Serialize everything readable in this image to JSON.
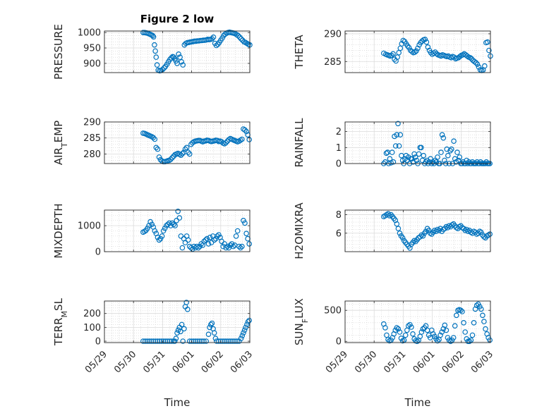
{
  "figure": {
    "marker_color": "#0072BD",
    "axis_color": "#262626",
    "grid": true,
    "minor_grid": true
  },
  "chart_data": [
    {
      "type": "scatter",
      "title": "Figure 2 low",
      "ylabel": "PRESSURE",
      "xlabel": "",
      "ylim": [
        870,
        1005
      ],
      "yticks": [
        900,
        950,
        1000
      ],
      "xlim": [
        0,
        5
      ],
      "xticks": [],
      "x": [
        1.33,
        1.38,
        1.43,
        1.48,
        1.53,
        1.58,
        1.62,
        1.66,
        1.69,
        1.72,
        1.75,
        1.78,
        1.81,
        1.85,
        1.9,
        1.95,
        2.0,
        2.05,
        2.1,
        2.15,
        2.2,
        2.25,
        2.3,
        2.35,
        2.38,
        2.42,
        2.46,
        2.5,
        2.55,
        2.6,
        2.65,
        2.7,
        2.75,
        2.8,
        2.85,
        2.9,
        2.95,
        3.0,
        3.05,
        3.1,
        3.15,
        3.2,
        3.25,
        3.3,
        3.35,
        3.4,
        3.45,
        3.5,
        3.55,
        3.6,
        3.65,
        3.7,
        3.75,
        3.8,
        3.85,
        3.9,
        3.95,
        4.0,
        4.05,
        4.1,
        4.15,
        4.2,
        4.25,
        4.3,
        4.35,
        4.4,
        4.45,
        4.5,
        4.55,
        4.6,
        4.65,
        4.7,
        4.75,
        4.8,
        4.85,
        4.9,
        4.95,
        5.0
      ],
      "y": [
        1000,
        1000,
        999,
        998,
        996,
        994,
        992,
        990,
        986,
        960,
        940,
        920,
        895,
        878,
        876,
        877,
        880,
        885,
        890,
        897,
        905,
        912,
        918,
        922,
        920,
        915,
        908,
        900,
        930,
        920,
        905,
        895,
        960,
        965,
        967,
        968,
        969,
        970,
        971,
        972,
        972,
        973,
        973,
        974,
        974,
        975,
        975,
        976,
        978,
        977,
        978,
        980,
        985,
        965,
        958,
        962,
        968,
        975,
        982,
        990,
        995,
        998,
        1000,
        1001,
        1000,
        999,
        998,
        996,
        993,
        990,
        985,
        980,
        975,
        970,
        968,
        965,
        962,
        960
      ]
    },
    {
      "type": "scatter",
      "title": "",
      "ylabel": "THETA",
      "xlabel": "",
      "ylim": [
        283,
        290.5
      ],
      "yticks": [
        285,
        290
      ],
      "xlim": [
        0,
        5
      ],
      "xticks": [],
      "x": [
        1.33,
        1.4,
        1.45,
        1.5,
        1.55,
        1.6,
        1.65,
        1.7,
        1.75,
        1.8,
        1.85,
        1.9,
        1.95,
        2.0,
        2.05,
        2.1,
        2.15,
        2.2,
        2.25,
        2.3,
        2.35,
        2.4,
        2.45,
        2.5,
        2.55,
        2.6,
        2.65,
        2.7,
        2.75,
        2.8,
        2.85,
        2.9,
        2.95,
        3.0,
        3.05,
        3.1,
        3.15,
        3.2,
        3.25,
        3.3,
        3.35,
        3.4,
        3.45,
        3.5,
        3.55,
        3.6,
        3.65,
        3.7,
        3.75,
        3.8,
        3.85,
        3.9,
        3.95,
        4.0,
        4.05,
        4.1,
        4.15,
        4.2,
        4.25,
        4.3,
        4.35,
        4.4,
        4.45,
        4.5,
        4.55,
        4.6,
        4.65,
        4.7,
        4.75,
        4.8,
        4.85,
        4.9,
        4.95,
        5.0
      ],
      "y": [
        286.5,
        286.3,
        286.2,
        286.1,
        286.0,
        286.1,
        286.4,
        285.4,
        285.1,
        285.8,
        286.6,
        287.4,
        288.2,
        288.8,
        288.6,
        288.2,
        287.8,
        287.5,
        287.0,
        286.8,
        286.6,
        286.7,
        286.9,
        287.4,
        288.0,
        288.4,
        288.7,
        288.9,
        289.0,
        288.5,
        287.6,
        287.0,
        286.6,
        286.3,
        286.5,
        286.7,
        286.4,
        286.2,
        286.1,
        286.0,
        286.2,
        286.1,
        286.0,
        285.9,
        286.0,
        285.8,
        285.7,
        285.9,
        285.8,
        285.5,
        285.6,
        285.7,
        285.9,
        286.1,
        286.2,
        286.4,
        286.2,
        286.0,
        285.8,
        285.7,
        285.5,
        285.2,
        285.0,
        284.8,
        284.5,
        284.0,
        283.5,
        283.4,
        283.5,
        284.2,
        288.4,
        288.5,
        287.0,
        286.0
      ]
    },
    {
      "type": "scatter",
      "title": "",
      "ylabel": "AIR_TEMP",
      "xlabel": "",
      "ylim": [
        277,
        290
      ],
      "yticks": [
        280,
        285,
        290
      ],
      "xlim": [
        0,
        5
      ],
      "xticks": [],
      "x": [
        1.33,
        1.38,
        1.43,
        1.48,
        1.53,
        1.58,
        1.63,
        1.68,
        1.73,
        1.78,
        1.83,
        1.88,
        1.93,
        1.98,
        2.03,
        2.08,
        2.13,
        2.18,
        2.23,
        2.28,
        2.33,
        2.38,
        2.43,
        2.48,
        2.53,
        2.58,
        2.63,
        2.68,
        2.73,
        2.78,
        2.83,
        2.88,
        2.93,
        2.98,
        3.03,
        3.08,
        3.13,
        3.18,
        3.23,
        3.28,
        3.33,
        3.38,
        3.43,
        3.48,
        3.53,
        3.58,
        3.63,
        3.68,
        3.73,
        3.78,
        3.83,
        3.88,
        3.93,
        3.98,
        4.03,
        4.08,
        4.13,
        4.18,
        4.23,
        4.28,
        4.33,
        4.38,
        4.43,
        4.48,
        4.53,
        4.58,
        4.63,
        4.68,
        4.73,
        4.78,
        4.83,
        4.88,
        4.93,
        4.98
      ],
      "y": [
        286.5,
        286.4,
        286.2,
        286.0,
        285.8,
        285.6,
        285.4,
        285.1,
        284.6,
        282.0,
        281.5,
        279.0,
        278.2,
        277.8,
        277.6,
        277.6,
        277.7,
        277.9,
        278.0,
        278.3,
        278.8,
        279.3,
        279.8,
        280.0,
        280.2,
        279.9,
        279.6,
        280.1,
        280.5,
        281.5,
        282.0,
        280.5,
        280.0,
        283.0,
        283.5,
        283.8,
        284.0,
        284.1,
        284.2,
        284.2,
        284.0,
        283.8,
        284.0,
        284.1,
        284.3,
        284.2,
        284.0,
        283.9,
        284.0,
        284.1,
        284.3,
        284.2,
        283.9,
        284.0,
        283.8,
        283.4,
        283.2,
        283.5,
        284.0,
        284.5,
        284.8,
        284.6,
        284.4,
        284.2,
        284.0,
        283.8,
        284.0,
        284.3,
        284.6,
        287.8,
        287.5,
        287.0,
        286.0,
        284.5
      ]
    },
    {
      "type": "scatter",
      "title": "",
      "ylabel": "RAINFALL",
      "xlabel": "",
      "ylim": [
        0,
        2.6
      ],
      "yticks": [
        0,
        1,
        2
      ],
      "xlim": [
        0,
        5
      ],
      "xticks": [],
      "x": [
        1.33,
        1.38,
        1.42,
        1.46,
        1.5,
        1.54,
        1.58,
        1.62,
        1.66,
        1.7,
        1.74,
        1.78,
        1.82,
        1.86,
        1.9,
        1.94,
        1.98,
        2.02,
        2.06,
        2.1,
        2.14,
        2.18,
        2.22,
        2.26,
        2.3,
        2.34,
        2.38,
        2.42,
        2.46,
        2.5,
        2.54,
        2.58,
        2.62,
        2.66,
        2.7,
        2.74,
        2.78,
        2.82,
        2.86,
        2.9,
        2.94,
        2.98,
        3.02,
        3.06,
        3.1,
        3.14,
        3.18,
        3.22,
        3.26,
        3.3,
        3.34,
        3.38,
        3.42,
        3.46,
        3.5,
        3.54,
        3.58,
        3.62,
        3.66,
        3.7,
        3.74,
        3.78,
        3.82,
        3.86,
        3.9,
        3.94,
        3.98,
        4.02,
        4.06,
        4.1,
        4.14,
        4.18,
        4.22,
        4.26,
        4.3,
        4.34,
        4.38,
        4.42,
        4.46,
        4.5,
        4.54,
        4.58,
        4.62,
        4.66,
        4.7,
        4.74,
        4.78,
        4.82,
        4.86,
        4.9,
        4.94,
        4.98
      ],
      "y": [
        0,
        0.1,
        0.65,
        0.7,
        0.0,
        0.3,
        0.05,
        0.7,
        0.1,
        1.7,
        1.1,
        1.8,
        2.5,
        1.1,
        1.8,
        0.5,
        0.2,
        0.0,
        0.3,
        0.5,
        0.2,
        0.4,
        0.0,
        0.3,
        0.3,
        0.1,
        0.6,
        0.4,
        0.2,
        0.0,
        0.6,
        1.0,
        1.0,
        0.2,
        0.5,
        0.0,
        0.1,
        0.2,
        0.0,
        0.1,
        0.3,
        0.0,
        0.1,
        0.0,
        0.2,
        0.1,
        0.4,
        0.0,
        0.0,
        0.7,
        1.8,
        1.6,
        0.2,
        0.0,
        0.9,
        0.5,
        0.0,
        0.8,
        0.9,
        0.0,
        1.4,
        0.3,
        0.1,
        0.7,
        0.2,
        0.4,
        0.0,
        0.0,
        0.1,
        0.0,
        0.0,
        0.2,
        0.0,
        0.1,
        0.0,
        0.0,
        0.1,
        0.0,
        0.0,
        0.0,
        0.1,
        0.0,
        0.0,
        0.1,
        0.0,
        0.0,
        0.0,
        0.0,
        0.1,
        0.0,
        0.0,
        0.0
      ]
    },
    {
      "type": "scatter",
      "title": "",
      "ylabel": "MIXDEPTH",
      "xlabel": "",
      "ylim": [
        0,
        1600
      ],
      "yticks": [
        0,
        1000
      ],
      "xlim": [
        0,
        5
      ],
      "xticks": [],
      "x": [
        1.33,
        1.38,
        1.43,
        1.48,
        1.53,
        1.58,
        1.63,
        1.68,
        1.73,
        1.78,
        1.83,
        1.88,
        1.93,
        1.98,
        2.03,
        2.08,
        2.13,
        2.18,
        2.23,
        2.28,
        2.33,
        2.38,
        2.43,
        2.48,
        2.53,
        2.58,
        2.63,
        2.68,
        2.73,
        2.78,
        2.83,
        2.88,
        2.93,
        2.98,
        3.03,
        3.08,
        3.13,
        3.18,
        3.23,
        3.28,
        3.33,
        3.38,
        3.43,
        3.48,
        3.53,
        3.58,
        3.63,
        3.68,
        3.73,
        3.78,
        3.83,
        3.88,
        3.93,
        3.98,
        4.03,
        4.08,
        4.13,
        4.18,
        4.23,
        4.28,
        4.33,
        4.38,
        4.43,
        4.48,
        4.53,
        4.58,
        4.63,
        4.68,
        4.73,
        4.78,
        4.83,
        4.88,
        4.93,
        4.98
      ],
      "y": [
        750,
        780,
        820,
        900,
        1000,
        1150,
        1050,
        950,
        800,
        700,
        550,
        450,
        500,
        600,
        800,
        900,
        1000,
        1050,
        1100,
        1000,
        1100,
        1050,
        1000,
        1200,
        1550,
        1300,
        600,
        150,
        500,
        350,
        600,
        450,
        200,
        150,
        100,
        200,
        150,
        200,
        150,
        200,
        300,
        250,
        400,
        450,
        500,
        300,
        550,
        350,
        600,
        450,
        500,
        600,
        650,
        550,
        400,
        200,
        300,
        150,
        200,
        150,
        250,
        300,
        200,
        250,
        600,
        800,
        200,
        150,
        200,
        1200,
        1100,
        700,
        500,
        300
      ]
    },
    {
      "type": "scatter",
      "title": "",
      "ylabel": "H2OMIXRA",
      "xlabel": "",
      "ylim": [
        4,
        8.5
      ],
      "yticks": [
        6,
        8
      ],
      "xlim": [
        0,
        5
      ],
      "xticks": [],
      "x": [
        1.33,
        1.38,
        1.43,
        1.48,
        1.53,
        1.58,
        1.63,
        1.68,
        1.73,
        1.78,
        1.83,
        1.88,
        1.93,
        1.98,
        2.03,
        2.08,
        2.13,
        2.18,
        2.23,
        2.28,
        2.33,
        2.38,
        2.43,
        2.48,
        2.53,
        2.58,
        2.63,
        2.68,
        2.73,
        2.78,
        2.83,
        2.88,
        2.93,
        2.98,
        3.03,
        3.08,
        3.13,
        3.18,
        3.23,
        3.28,
        3.33,
        3.38,
        3.43,
        3.48,
        3.53,
        3.58,
        3.63,
        3.68,
        3.73,
        3.78,
        3.83,
        3.88,
        3.93,
        3.98,
        4.03,
        4.08,
        4.13,
        4.18,
        4.23,
        4.28,
        4.33,
        4.38,
        4.43,
        4.48,
        4.53,
        4.58,
        4.63,
        4.68,
        4.73,
        4.78,
        4.83,
        4.88,
        4.93,
        4.98
      ],
      "y": [
        7.8,
        7.9,
        8.0,
        8.1,
        7.9,
        8.0,
        7.8,
        7.6,
        7.4,
        7.0,
        6.5,
        6.0,
        5.7,
        5.5,
        5.2,
        5.0,
        4.8,
        4.6,
        4.4,
        4.8,
        5.0,
        5.2,
        5.1,
        5.3,
        5.5,
        5.6,
        5.8,
        5.7,
        6.0,
        6.2,
        6.5,
        6.3,
        6.0,
        5.9,
        6.1,
        6.3,
        6.2,
        6.4,
        6.3,
        6.5,
        6.2,
        6.4,
        6.5,
        6.7,
        6.6,
        6.8,
        6.7,
        6.9,
        7.0,
        6.8,
        6.6,
        6.5,
        6.7,
        6.8,
        6.6,
        6.5,
        6.3,
        6.4,
        6.2,
        6.3,
        6.1,
        6.0,
        6.2,
        6.1,
        5.9,
        6.0,
        6.2,
        6.1,
        5.8,
        5.6,
        5.5,
        5.7,
        5.8,
        5.9
      ]
    },
    {
      "type": "scatter",
      "title": "",
      "ylabel": "TERR_MSL",
      "xlabel": "Time",
      "ylim": [
        -10,
        290
      ],
      "yticks": [
        0,
        100,
        200
      ],
      "xlim": [
        0,
        5
      ],
      "xticks": [
        0,
        1,
        2,
        3,
        4,
        5
      ],
      "xticklabels": [
        "05/29",
        "05/30",
        "05/31",
        "06/01",
        "06/02",
        "06/03"
      ],
      "x": [
        1.33,
        1.4,
        1.47,
        1.54,
        1.61,
        1.68,
        1.75,
        1.82,
        1.89,
        1.96,
        2.03,
        2.1,
        2.17,
        2.24,
        2.31,
        2.38,
        2.42,
        2.46,
        2.5,
        2.54,
        2.58,
        2.62,
        2.66,
        2.7,
        2.74,
        2.78,
        2.82,
        2.86,
        2.93,
        3.0,
        3.07,
        3.14,
        3.21,
        3.28,
        3.35,
        3.42,
        3.5,
        3.58,
        3.62,
        3.66,
        3.7,
        3.74,
        3.78,
        3.82,
        3.86,
        3.93,
        4.0,
        4.07,
        4.14,
        4.21,
        4.28,
        4.35,
        4.42,
        4.49,
        4.56,
        4.63,
        4.7,
        4.74,
        4.78,
        4.82,
        4.86,
        4.9,
        4.94,
        4.98
      ],
      "y": [
        0,
        0,
        0,
        0,
        0,
        0,
        0,
        0,
        0,
        0,
        0,
        0,
        0,
        0,
        0,
        0,
        0,
        20,
        60,
        80,
        100,
        70,
        120,
        0,
        90,
        250,
        280,
        230,
        0,
        0,
        0,
        0,
        0,
        0,
        0,
        0,
        0,
        50,
        100,
        120,
        130,
        90,
        60,
        20,
        0,
        0,
        0,
        0,
        0,
        0,
        0,
        0,
        0,
        0,
        0,
        0,
        20,
        40,
        60,
        80,
        100,
        120,
        140,
        150
      ]
    },
    {
      "type": "scatter",
      "title": "",
      "ylabel": "SUN_FLUX",
      "xlabel": "Time",
      "ylim": [
        -20,
        650
      ],
      "yticks": [
        0,
        500
      ],
      "xlim": [
        0,
        5
      ],
      "xticks": [
        0,
        1,
        2,
        3,
        4,
        5
      ],
      "xticklabels": [
        "05/29",
        "05/30",
        "05/31",
        "06/01",
        "06/02",
        "06/03"
      ],
      "x": [
        1.33,
        1.38,
        1.43,
        1.48,
        1.53,
        1.58,
        1.63,
        1.68,
        1.73,
        1.78,
        1.83,
        1.88,
        1.93,
        1.98,
        2.03,
        2.08,
        2.13,
        2.18,
        2.23,
        2.28,
        2.33,
        2.38,
        2.43,
        2.48,
        2.53,
        2.58,
        2.63,
        2.68,
        2.73,
        2.78,
        2.83,
        2.88,
        2.93,
        2.98,
        3.03,
        3.08,
        3.13,
        3.18,
        3.23,
        3.28,
        3.33,
        3.38,
        3.43,
        3.48,
        3.53,
        3.58,
        3.63,
        3.68,
        3.73,
        3.78,
        3.83,
        3.88,
        3.93,
        3.98,
        4.03,
        4.08,
        4.13,
        4.18,
        4.23,
        4.28,
        4.33,
        4.38,
        4.43,
        4.48,
        4.53,
        4.58,
        4.63,
        4.68,
        4.73,
        4.78,
        4.83,
        4.88,
        4.93,
        4.98
      ],
      "y": [
        280,
        220,
        100,
        30,
        10,
        20,
        60,
        120,
        180,
        220,
        200,
        150,
        50,
        10,
        20,
        100,
        180,
        250,
        270,
        230,
        120,
        40,
        10,
        0,
        20,
        80,
        150,
        200,
        220,
        250,
        180,
        100,
        60,
        180,
        120,
        80,
        40,
        10,
        30,
        100,
        150,
        200,
        260,
        180,
        60,
        20,
        0,
        20,
        60,
        250,
        420,
        500,
        510,
        500,
        480,
        300,
        150,
        40,
        0,
        0,
        20,
        100,
        300,
        520,
        580,
        600,
        560,
        520,
        420,
        320,
        200,
        120,
        60,
        20
      ]
    }
  ]
}
